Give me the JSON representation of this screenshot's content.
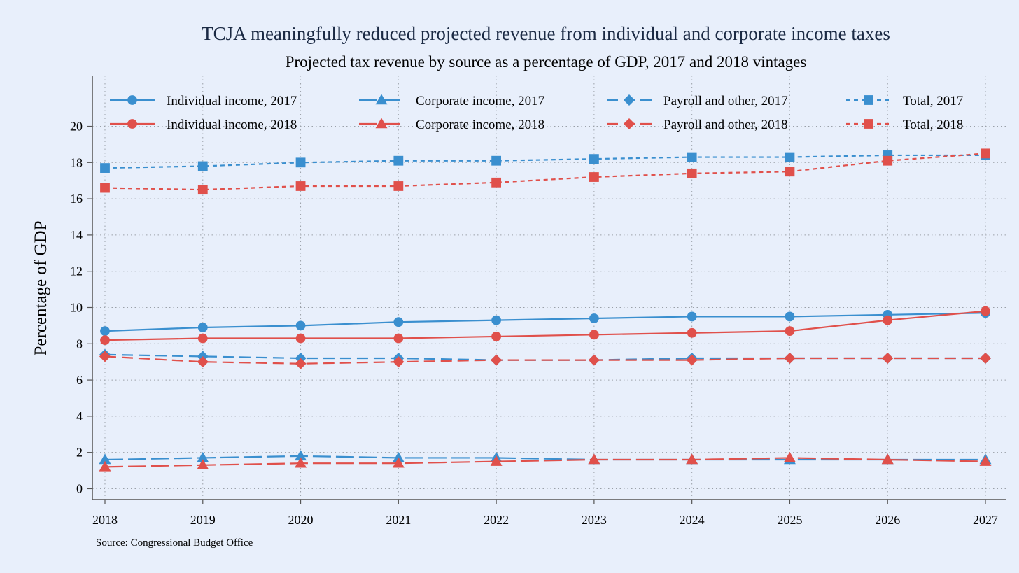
{
  "chart_data": {
    "type": "line",
    "title": "TCJA meaningfully reduced projected revenue from individual and corporate income taxes",
    "subtitle": "Projected tax revenue by source as a percentage of GDP, 2017 and 2018 vintages",
    "ylabel": "Percentage of GDP",
    "xlabel": "",
    "x": [
      2018,
      2019,
      2020,
      2021,
      2022,
      2023,
      2024,
      2025,
      2026,
      2027
    ],
    "xlim": [
      2018,
      2027
    ],
    "ylim": [
      -0.6,
      22.8
    ],
    "yticks": [
      0,
      2,
      4,
      6,
      8,
      10,
      12,
      14,
      16,
      18,
      20
    ],
    "grid": true,
    "legend_position": "top",
    "source_note": "Source: Congressional Budget Office",
    "colors": {
      "2017": "#3a8fcf",
      "2018": "#e0504b"
    },
    "series": [
      {
        "name": "Individual income, 2017",
        "vintage": "2017",
        "dash": "solid",
        "marker": "circle",
        "values": [
          8.7,
          8.9,
          9.0,
          9.2,
          9.3,
          9.4,
          9.5,
          9.5,
          9.6,
          9.7
        ]
      },
      {
        "name": "Individual income, 2018",
        "vintage": "2018",
        "dash": "solid",
        "marker": "circle",
        "values": [
          8.2,
          8.3,
          8.3,
          8.3,
          8.4,
          8.5,
          8.6,
          8.7,
          9.3,
          9.8
        ]
      },
      {
        "name": "Corporate income, 2017",
        "vintage": "2017",
        "dash": "longdash",
        "marker": "triangle",
        "values": [
          1.6,
          1.7,
          1.8,
          1.7,
          1.7,
          1.6,
          1.6,
          1.6,
          1.6,
          1.6
        ]
      },
      {
        "name": "Corporate income, 2018",
        "vintage": "2018",
        "dash": "longdash",
        "marker": "triangle",
        "values": [
          1.2,
          1.3,
          1.4,
          1.4,
          1.5,
          1.6,
          1.6,
          1.7,
          1.6,
          1.5
        ]
      },
      {
        "name": "Payroll and other, 2017",
        "vintage": "2017",
        "dash": "dash",
        "marker": "diamond",
        "values": [
          7.4,
          7.3,
          7.2,
          7.2,
          7.1,
          7.1,
          7.2,
          7.2,
          7.2,
          7.2
        ]
      },
      {
        "name": "Payroll and other, 2018",
        "vintage": "2018",
        "dash": "dash",
        "marker": "diamond",
        "values": [
          7.3,
          7.0,
          6.9,
          7.0,
          7.1,
          7.1,
          7.1,
          7.2,
          7.2,
          7.2
        ]
      },
      {
        "name": "Total, 2017",
        "vintage": "2017",
        "dash": "shortdash",
        "marker": "square",
        "values": [
          17.7,
          17.8,
          18.0,
          18.1,
          18.1,
          18.2,
          18.3,
          18.3,
          18.4,
          18.4
        ]
      },
      {
        "name": "Total, 2018",
        "vintage": "2018",
        "dash": "shortdash",
        "marker": "square",
        "values": [
          16.6,
          16.5,
          16.7,
          16.7,
          16.9,
          17.2,
          17.4,
          17.5,
          18.1,
          18.5
        ]
      }
    ],
    "legend_order": [
      "Individual income, 2017",
      "Corporate income, 2017",
      "Payroll and other, 2017",
      "Total, 2017",
      "Individual income, 2018",
      "Corporate income, 2018",
      "Payroll and other, 2018",
      "Total, 2018"
    ]
  }
}
